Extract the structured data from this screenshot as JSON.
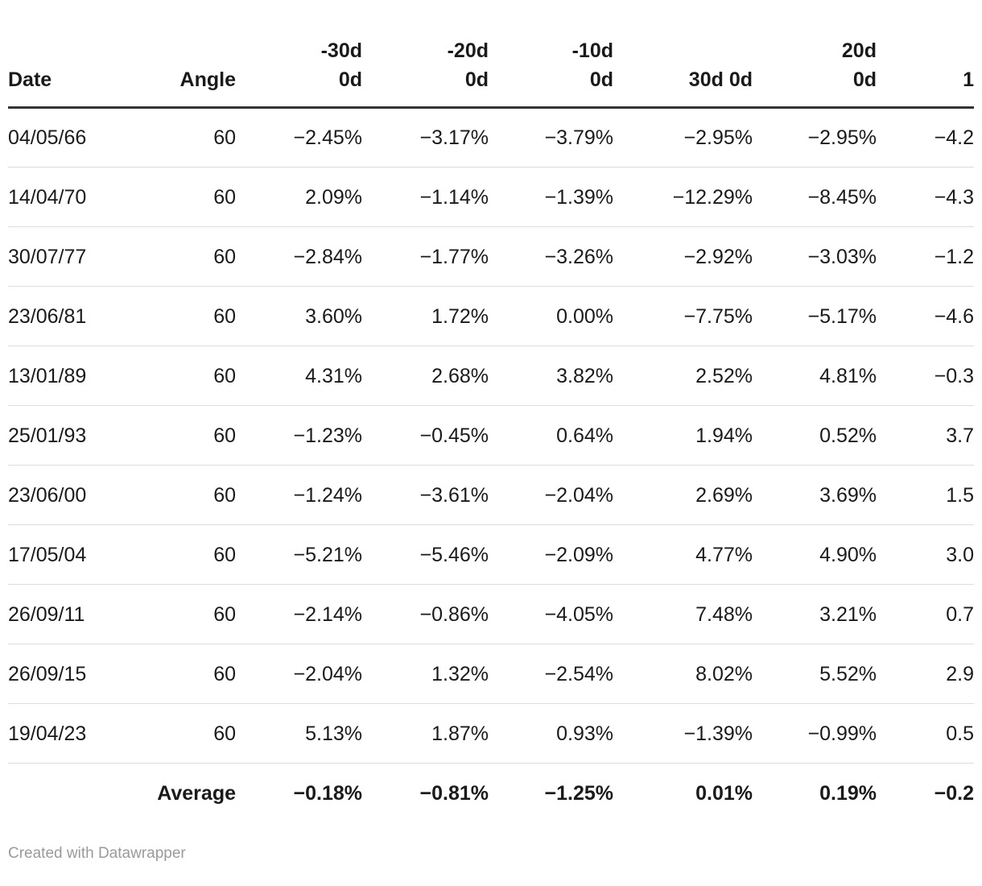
{
  "colors": {
    "text": "#1a1a1a",
    "header_rule": "#333333",
    "row_divider": "#dddddd",
    "attribution": "#9a9a9a",
    "background": "#ffffff"
  },
  "table": {
    "columns": [
      {
        "id": "date",
        "align": "left",
        "lines": [
          "Date"
        ]
      },
      {
        "id": "angle",
        "align": "right",
        "lines": [
          "Angle"
        ]
      },
      {
        "id": "m30d-0d",
        "align": "right",
        "lines": [
          "-30d",
          "0d"
        ]
      },
      {
        "id": "m20d-0d",
        "align": "right",
        "lines": [
          "-20d",
          "0d"
        ]
      },
      {
        "id": "m10d-0d",
        "align": "right",
        "lines": [
          "-10d",
          "0d"
        ]
      },
      {
        "id": "30d-0d",
        "align": "right",
        "lines": [
          "30d 0d"
        ]
      },
      {
        "id": "20d-0d",
        "align": "right",
        "lines": [
          "20d",
          "0d"
        ]
      },
      {
        "id": "last",
        "align": "right",
        "lines": [
          "1"
        ]
      }
    ],
    "rows": [
      [
        "04/05/66",
        "60",
        "−2.45%",
        "−3.17%",
        "−3.79%",
        "−2.95%",
        "−2.95%",
        "−4.2"
      ],
      [
        "14/04/70",
        "60",
        "2.09%",
        "−1.14%",
        "−1.39%",
        "−12.29%",
        "−8.45%",
        "−4.3"
      ],
      [
        "30/07/77",
        "60",
        "−2.84%",
        "−1.77%",
        "−3.26%",
        "−2.92%",
        "−3.03%",
        "−1.2"
      ],
      [
        "23/06/81",
        "60",
        "3.60%",
        "1.72%",
        "0.00%",
        "−7.75%",
        "−5.17%",
        "−4.6"
      ],
      [
        "13/01/89",
        "60",
        "4.31%",
        "2.68%",
        "3.82%",
        "2.52%",
        "4.81%",
        "−0.3"
      ],
      [
        "25/01/93",
        "60",
        "−1.23%",
        "−0.45%",
        "0.64%",
        "1.94%",
        "0.52%",
        "3.7"
      ],
      [
        "23/06/00",
        "60",
        "−1.24%",
        "−3.61%",
        "−2.04%",
        "2.69%",
        "3.69%",
        "1.5"
      ],
      [
        "17/05/04",
        "60",
        "−5.21%",
        "−5.46%",
        "−2.09%",
        "4.77%",
        "4.90%",
        "3.0"
      ],
      [
        "26/09/11",
        "60",
        "−2.14%",
        "−0.86%",
        "−4.05%",
        "7.48%",
        "3.21%",
        "0.7"
      ],
      [
        "26/09/15",
        "60",
        "−2.04%",
        "1.32%",
        "−2.54%",
        "8.02%",
        "5.52%",
        "2.9"
      ],
      [
        "19/04/23",
        "60",
        "5.13%",
        "1.87%",
        "0.93%",
        "−1.39%",
        "−0.99%",
        "0.5"
      ]
    ],
    "average_row": [
      "",
      "Average",
      "−0.18%",
      "−0.81%",
      "−1.25%",
      "0.01%",
      "0.19%",
      "−0.2"
    ]
  },
  "footer": {
    "attribution": "Created with Datawrapper"
  }
}
